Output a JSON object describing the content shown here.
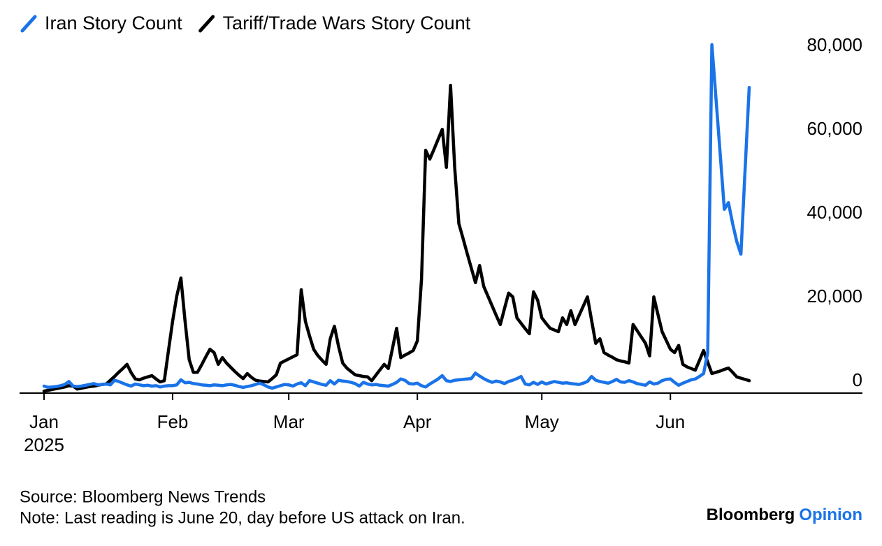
{
  "chart_data": {
    "type": "line",
    "categories": [
      "Jan",
      null,
      null,
      null,
      null,
      null,
      null,
      null,
      null,
      null,
      null,
      null,
      null,
      null,
      null,
      null,
      null,
      null,
      null,
      null,
      null,
      null,
      null,
      null,
      null,
      null,
      null,
      null,
      null,
      null,
      null,
      "Feb",
      null,
      null,
      null,
      null,
      null,
      null,
      null,
      null,
      null,
      null,
      null,
      null,
      null,
      null,
      null,
      null,
      null,
      null,
      null,
      null,
      null,
      null,
      null,
      null,
      null,
      null,
      null,
      "Mar",
      null,
      null,
      null,
      null,
      null,
      null,
      null,
      null,
      null,
      null,
      null,
      null,
      null,
      null,
      null,
      null,
      null,
      null,
      null,
      null,
      null,
      null,
      null,
      null,
      null,
      null,
      null,
      null,
      null,
      null,
      "Apr",
      null,
      null,
      null,
      null,
      null,
      null,
      null,
      null,
      null,
      null,
      null,
      null,
      null,
      null,
      null,
      null,
      null,
      null,
      null,
      null,
      null,
      null,
      null,
      null,
      null,
      null,
      null,
      null,
      null,
      "May",
      null,
      null,
      null,
      null,
      null,
      null,
      null,
      null,
      null,
      null,
      null,
      null,
      null,
      null,
      null,
      null,
      null,
      null,
      null,
      null,
      null,
      null,
      null,
      null,
      null,
      null,
      null,
      null,
      null,
      null,
      "Jun",
      null,
      null,
      null,
      null,
      null,
      null,
      null,
      null,
      null,
      null,
      null,
      null,
      null,
      null,
      null,
      null,
      null,
      null,
      null
    ],
    "year_label": "2025",
    "series": [
      {
        "name": "Iran Story Count",
        "color": "#1a73e8",
        "values": [
          1500,
          1200,
          1300,
          1400,
          1600,
          1900,
          2600,
          1500,
          1400,
          1500,
          1700,
          1900,
          2100,
          1800,
          1900,
          2000,
          1800,
          2900,
          2600,
          2200,
          1800,
          1500,
          2000,
          1800,
          1600,
          1700,
          1500,
          1600,
          1300,
          1500,
          1600,
          1600,
          1800,
          3000,
          2300,
          2400,
          2100,
          2000,
          1800,
          1700,
          1600,
          1800,
          1700,
          1600,
          1800,
          1900,
          1700,
          1400,
          1200,
          1400,
          1600,
          1900,
          2200,
          1800,
          1300,
          1000,
          1300,
          1600,
          1900,
          1800,
          1500,
          2000,
          2300,
          1600,
          2800,
          2500,
          2200,
          1900,
          1700,
          2800,
          2000,
          2900,
          2700,
          2600,
          2400,
          2100,
          1500,
          2400,
          2000,
          1800,
          1900,
          1700,
          1600,
          1500,
          1900,
          2400,
          3200,
          2900,
          2100,
          2000,
          2200,
          1600,
          1300,
          2000,
          2600,
          3200,
          4000,
          2800,
          2600,
          2900,
          3000,
          3100,
          3200,
          3300,
          4600,
          3900,
          3300,
          2800,
          2400,
          2700,
          2500,
          2100,
          2600,
          2900,
          3300,
          3800,
          2000,
          1800,
          2400,
          1900,
          2500,
          2000,
          2300,
          2600,
          2400,
          2200,
          2300,
          2100,
          2000,
          1900,
          2200,
          2600,
          3800,
          2900,
          2600,
          2400,
          2200,
          2600,
          3100,
          2500,
          2400,
          2800,
          2500,
          2100,
          1900,
          1700,
          2500,
          2000,
          2200,
          2800,
          3100,
          3200,
          2400,
          1700,
          2200,
          2600,
          3000,
          3200,
          3800,
          4500,
          9500,
          83000,
          70000,
          57000,
          43700,
          45300,
          40300,
          36000,
          33000,
          53000,
          72800
        ]
      },
      {
        "name": "Tariff/Trade Wars Story Count",
        "color": "#000000",
        "values": [
          300,
          500,
          700,
          900,
          1100,
          1300,
          1600,
          1500,
          800,
          1000,
          1200,
          1400,
          1500,
          1700,
          1900,
          2000,
          2900,
          3800,
          4800,
          5700,
          6700,
          4700,
          3200,
          3000,
          3400,
          3700,
          4000,
          3200,
          2500,
          2800,
          10000,
          17000,
          23000,
          27300,
          17000,
          7800,
          4800,
          4800,
          6600,
          8500,
          10300,
          9500,
          6700,
          8300,
          7000,
          6000,
          5000,
          4100,
          3300,
          4500,
          3600,
          2900,
          2700,
          2600,
          2500,
          3300,
          4200,
          7000,
          7500,
          8000,
          8500,
          9000,
          24500,
          17000,
          13500,
          10300,
          8800,
          7700,
          6700,
          12800,
          15800,
          11000,
          7000,
          5800,
          5000,
          4200,
          4000,
          3800,
          3700,
          2800,
          4100,
          5400,
          6700,
          5700,
          10500,
          15300,
          8300,
          8900,
          9400,
          10000,
          12300,
          27000,
          57800,
          55700,
          58000,
          60400,
          62800,
          53700,
          73300,
          53700,
          40300,
          36800,
          33200,
          29700,
          26200,
          30300,
          25300,
          23000,
          20700,
          18400,
          16200,
          20000,
          23700,
          22800,
          17800,
          16500,
          15200,
          14000,
          24000,
          22000,
          17800,
          16500,
          15300,
          14900,
          14500,
          17800,
          16200,
          19500,
          16200,
          18400,
          20600,
          22800,
          17200,
          11700,
          12800,
          9500,
          8900,
          8400,
          7800,
          7500,
          7300,
          7000,
          16200,
          14700,
          13200,
          11700,
          8700,
          22800,
          18600,
          14500,
          12400,
          10300,
          9500,
          11200,
          6700,
          6100,
          5700,
          5300,
          7600,
          10000,
          7200,
          4500,
          4800,
          5100,
          5500,
          5800,
          4800,
          3700,
          3400,
          3100,
          2800
        ]
      }
    ],
    "ylim": [
      0,
      84000
    ],
    "yticks": [
      0,
      {
        "value": 20000,
        "label": "20,000"
      },
      {
        "value": 40000,
        "label": "40,000"
      },
      {
        "value": 60000,
        "label": "60,000"
      },
      {
        "value": 80000,
        "label": "80,000"
      }
    ],
    "y_axis_side": "right",
    "grid": false,
    "legend": "top-left",
    "source": "Source: Bloomberg News Trends",
    "note": "Note: Last reading is June 20, day before US attack on Iran.",
    "branding": [
      "Bloomberg",
      "Opinion"
    ],
    "branding_colors": [
      "#000000",
      "#1a73e8"
    ]
  }
}
